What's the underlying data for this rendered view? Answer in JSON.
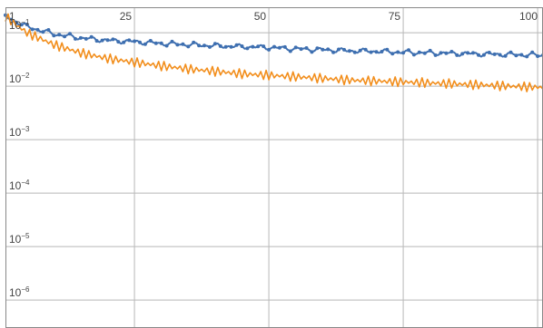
{
  "chart_data": {
    "type": "line",
    "title": "",
    "xlabel": "",
    "ylabel": "",
    "xlim": [
      1,
      101
    ],
    "ylim": [
      3e-07,
      0.3
    ],
    "y_scale": "log",
    "grid": true,
    "x_ticks": [
      {
        "label": "1",
        "value": 1
      },
      {
        "label": "25",
        "value": 25
      },
      {
        "label": "50",
        "value": 50
      },
      {
        "label": "75",
        "value": 75
      },
      {
        "label": "100",
        "value": 100
      }
    ],
    "y_ticks": [
      {
        "base": "10",
        "exp": "−1",
        "value": 0.1
      },
      {
        "base": "10",
        "exp": "−2",
        "value": 0.01
      },
      {
        "base": "10",
        "exp": "−3",
        "value": 0.001
      },
      {
        "base": "10",
        "exp": "−4",
        "value": 0.0001
      },
      {
        "base": "10",
        "exp": "−5",
        "value": 1e-05
      },
      {
        "base": "10",
        "exp": "−6",
        "value": 1e-06
      }
    ],
    "series": [
      {
        "color": "#3e6fb0",
        "markers": true,
        "x": [
          1,
          5,
          10,
          15,
          20,
          25,
          30,
          35,
          40,
          45,
          50,
          55,
          60,
          65,
          70,
          75,
          80,
          85,
          90,
          95,
          101
        ],
        "y": [
          0.2,
          0.13,
          0.095,
          0.08,
          0.072,
          0.068,
          0.063,
          0.06,
          0.057,
          0.055,
          0.053,
          0.05,
          0.048,
          0.046,
          0.045,
          0.043,
          0.042,
          0.041,
          0.04,
          0.039,
          0.038
        ]
      },
      {
        "color": "#f28e1c",
        "markers": false,
        "x": [
          1,
          3,
          5,
          10,
          15,
          20,
          25,
          30,
          35,
          40,
          45,
          50,
          55,
          60,
          65,
          70,
          75,
          80,
          85,
          90,
          95,
          101
        ],
        "y": [
          0.2,
          0.14,
          0.1,
          0.06,
          0.042,
          0.033,
          0.028,
          0.024,
          0.021,
          0.019,
          0.017,
          0.016,
          0.015,
          0.014,
          0.013,
          0.0125,
          0.012,
          0.0115,
          0.011,
          0.0105,
          0.01,
          0.0095
        ]
      }
    ]
  }
}
